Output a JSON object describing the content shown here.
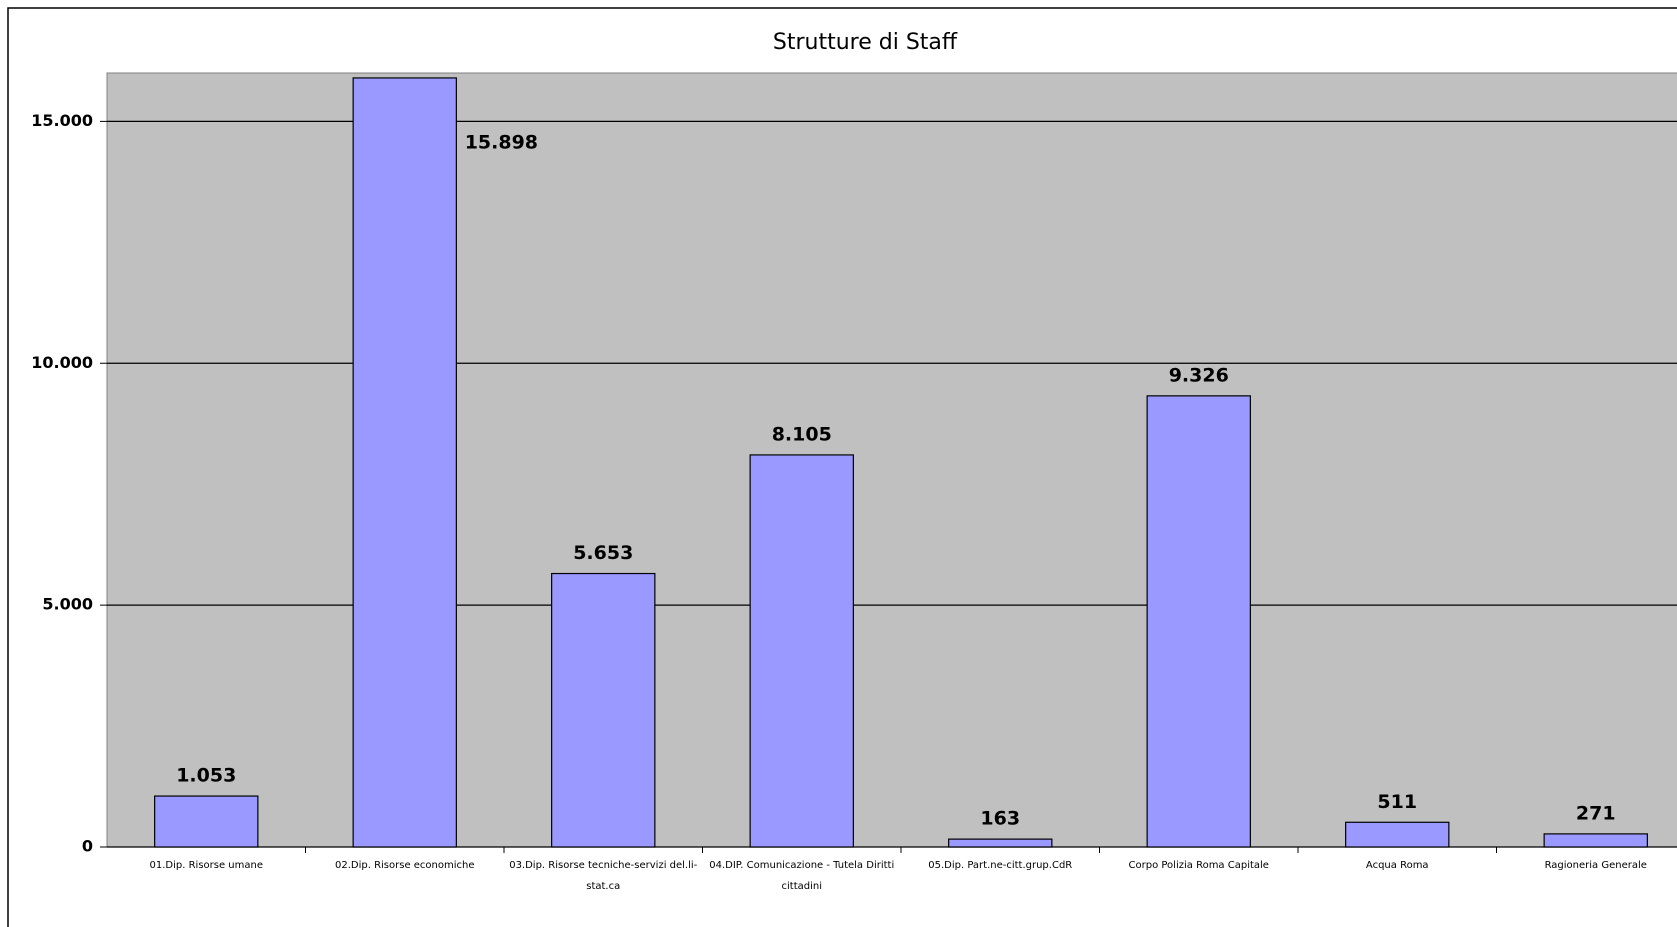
{
  "chart_data": {
    "type": "bar",
    "title": "Strutture di Staff",
    "categories": [
      "01.Dip. Risorse umane",
      "02.Dip. Risorse economiche",
      "03.Dip. Risorse tecniche-servizi del.li-stat.ca",
      "04.DIP. Comunicazione - Tutela Diritti cittadini",
      "05.Dip. Part.ne-citt.grup.CdR",
      "Corpo Polizia Roma Capitale",
      "Acqua Roma",
      "Ragioneria Generale"
    ],
    "values": [
      1053,
      15898,
      5653,
      8105,
      163,
      9326,
      511,
      271
    ],
    "value_labels": [
      "1.053",
      "15.898",
      "5.653",
      "8.105",
      "163",
      "9.326",
      "511",
      "271"
    ],
    "color": "#9999ff",
    "ylim": [
      0,
      16000
    ],
    "yticks": [
      0,
      {
        "value": 5000,
        "label": "5.000"
      },
      {
        "value": 10000,
        "label": "10.000"
      },
      {
        "value": 15000,
        "label": "15.000"
      }
    ],
    "grid": true
  }
}
